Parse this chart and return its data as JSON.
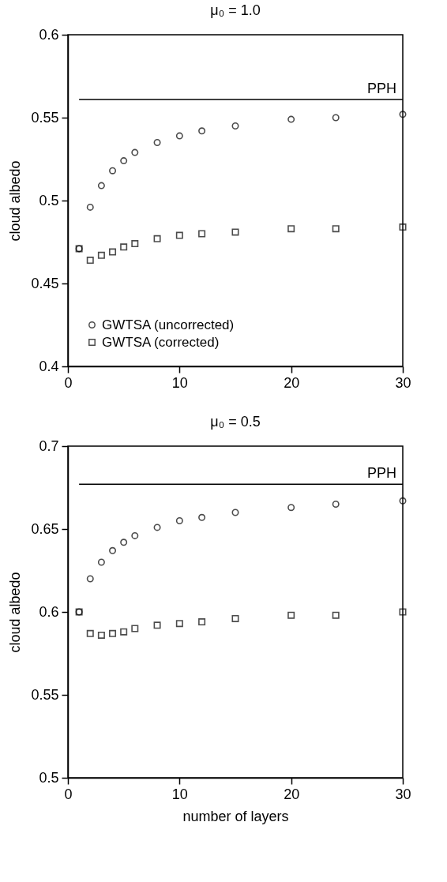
{
  "chart_data": [
    {
      "type": "scatter",
      "title": "μ₀ = 1.0",
      "ylabel": "cloud albedo",
      "x": [
        1,
        2,
        3,
        4,
        5,
        6,
        8,
        10,
        12,
        15,
        20,
        24,
        30
      ],
      "xlim": [
        0,
        30
      ],
      "xticks": [
        0,
        10,
        20,
        30
      ],
      "ylim": [
        0.4,
        0.6
      ],
      "yticks": [
        0.4,
        0.45,
        0.5,
        0.55,
        0.6
      ],
      "legend": "bottom left",
      "series": [
        {
          "name": "GWTSA (uncorrected)",
          "color": "#000000",
          "marker": "circle",
          "values": [
            0.471,
            0.496,
            0.509,
            0.518,
            0.524,
            0.529,
            0.535,
            0.539,
            0.542,
            0.545,
            0.549,
            0.55,
            0.552
          ]
        },
        {
          "name": "GWTSA (corrected)",
          "color": "#000000",
          "marker": "square",
          "values": [
            0.471,
            0.464,
            0.467,
            0.469,
            0.472,
            0.474,
            0.477,
            0.479,
            0.48,
            0.481,
            0.483,
            0.483,
            0.484
          ]
        },
        {
          "name": "PPH",
          "type": "line",
          "color": "#000000",
          "values": [
            0.561,
            0.561,
            0.561,
            0.561,
            0.561,
            0.561,
            0.561,
            0.561,
            0.561,
            0.561,
            0.561,
            0.561,
            0.561
          ]
        }
      ]
    },
    {
      "type": "scatter",
      "title": "μ₀ = 0.5",
      "xlabel": "number of layers",
      "ylabel": "cloud albedo",
      "x": [
        1,
        2,
        3,
        4,
        5,
        6,
        8,
        10,
        12,
        15,
        20,
        24,
        30
      ],
      "xlim": [
        0,
        30
      ],
      "xticks": [
        0,
        10,
        20,
        30
      ],
      "ylim": [
        0.5,
        0.7
      ],
      "yticks": [
        0.5,
        0.55,
        0.6,
        0.65,
        0.7
      ],
      "series": [
        {
          "color": "#000000",
          "marker": "circle",
          "values": [
            0.6,
            0.62,
            0.63,
            0.637,
            0.642,
            0.646,
            0.651,
            0.655,
            0.657,
            0.66,
            0.663,
            0.665,
            0.667
          ]
        },
        {
          "color": "#000000",
          "marker": "square",
          "values": [
            0.6,
            0.587,
            0.586,
            0.587,
            0.588,
            0.59,
            0.592,
            0.593,
            0.594,
            0.596,
            0.598,
            0.598,
            0.6
          ]
        },
        {
          "name": "PPH",
          "type": "line",
          "color": "#000000",
          "values": [
            0.677,
            0.677,
            0.677,
            0.677,
            0.677,
            0.677,
            0.677,
            0.677,
            0.677,
            0.677,
            0.677,
            0.677,
            0.677
          ]
        }
      ]
    }
  ]
}
